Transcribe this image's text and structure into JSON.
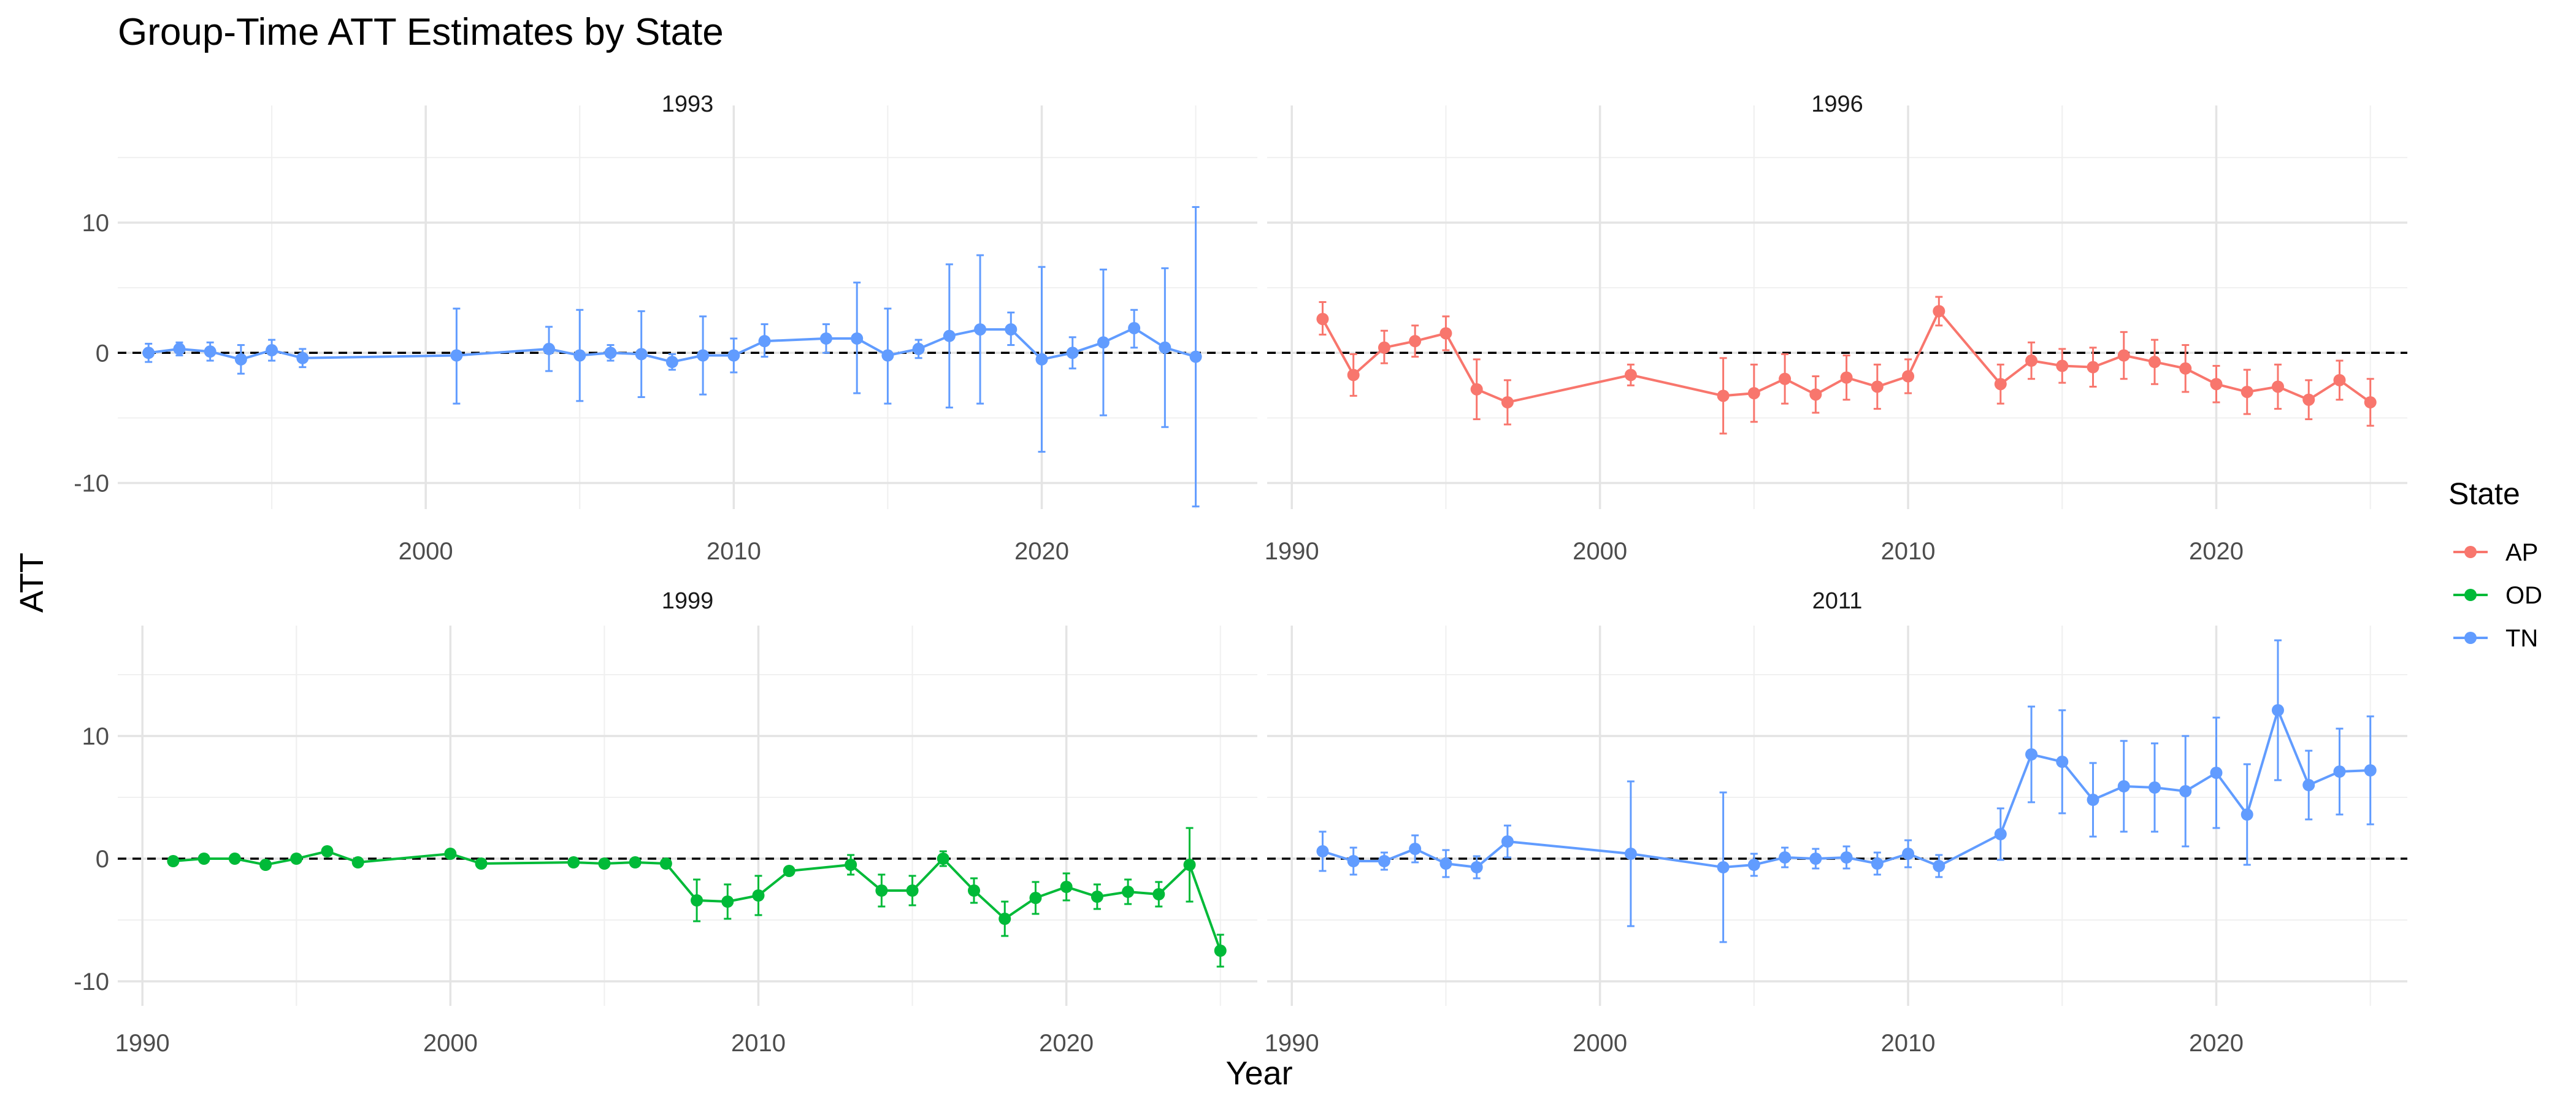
{
  "chart_data": {
    "type": "line",
    "title": "Group-Time ATT Estimates by State",
    "xlabel": "Year",
    "ylabel": "ATT",
    "ylim": [
      -12,
      19
    ],
    "y_ticks": [
      -10,
      0,
      10
    ],
    "grid": true,
    "reference_line": {
      "y": 0,
      "style": "dashed"
    },
    "legend": {
      "title": "State",
      "placement": "right",
      "entries": [
        {
          "name": "AP",
          "color": "#F8766D"
        },
        {
          "name": "OD",
          "color": "#00BA38"
        },
        {
          "name": "TN",
          "color": "#619CFF"
        }
      ]
    },
    "panels": [
      {
        "label": "1993",
        "state": "TN",
        "xlim": [
          1990,
          2027
        ],
        "x_ticks": [
          2000,
          2010,
          2020
        ],
        "points": [
          {
            "x": 1991,
            "y": 0.0,
            "lo": -0.7,
            "hi": 0.7
          },
          {
            "x": 1992,
            "y": 0.3,
            "lo": -0.2,
            "hi": 0.8
          },
          {
            "x": 1993,
            "y": 0.1,
            "lo": -0.6,
            "hi": 0.8
          },
          {
            "x": 1994,
            "y": -0.5,
            "lo": -1.6,
            "hi": 0.6
          },
          {
            "x": 1995,
            "y": 0.2,
            "lo": -0.6,
            "hi": 1.0
          },
          {
            "x": 1996,
            "y": -0.4,
            "lo": -1.1,
            "hi": 0.3
          },
          {
            "x": 2001,
            "y": -0.2,
            "lo": -3.9,
            "hi": 3.4
          },
          {
            "x": 2004,
            "y": 0.3,
            "lo": -1.4,
            "hi": 2.0
          },
          {
            "x": 2005,
            "y": -0.2,
            "lo": -3.7,
            "hi": 3.3
          },
          {
            "x": 2006,
            "y": 0.0,
            "lo": -0.6,
            "hi": 0.6
          },
          {
            "x": 2007,
            "y": -0.1,
            "lo": -3.4,
            "hi": 3.2
          },
          {
            "x": 2008,
            "y": -0.7,
            "lo": -1.3,
            "hi": -0.1
          },
          {
            "x": 2009,
            "y": -0.2,
            "lo": -3.2,
            "hi": 2.8
          },
          {
            "x": 2010,
            "y": -0.2,
            "lo": -1.5,
            "hi": 1.1
          },
          {
            "x": 2011,
            "y": 0.9,
            "lo": -0.3,
            "hi": 2.2
          },
          {
            "x": 2013,
            "y": 1.1,
            "lo": 0.0,
            "hi": 2.2
          },
          {
            "x": 2014,
            "y": 1.1,
            "lo": -3.1,
            "hi": 5.4
          },
          {
            "x": 2015,
            "y": -0.2,
            "lo": -3.9,
            "hi": 3.4
          },
          {
            "x": 2016,
            "y": 0.3,
            "lo": -0.4,
            "hi": 1.0
          },
          {
            "x": 2017,
            "y": 1.3,
            "lo": -4.2,
            "hi": 6.8
          },
          {
            "x": 2018,
            "y": 1.8,
            "lo": -3.9,
            "hi": 7.5
          },
          {
            "x": 2019,
            "y": 1.8,
            "lo": 0.6,
            "hi": 3.1
          },
          {
            "x": 2020,
            "y": -0.5,
            "lo": -7.6,
            "hi": 6.6
          },
          {
            "x": 2021,
            "y": 0.0,
            "lo": -1.2,
            "hi": 1.2
          },
          {
            "x": 2022,
            "y": 0.8,
            "lo": -4.8,
            "hi": 6.4
          },
          {
            "x": 2023,
            "y": 1.9,
            "lo": 0.4,
            "hi": 3.3
          },
          {
            "x": 2024,
            "y": 0.4,
            "lo": -5.7,
            "hi": 6.5
          },
          {
            "x": 2025,
            "y": -0.3,
            "lo": -11.8,
            "hi": 11.2
          }
        ]
      },
      {
        "label": "1996",
        "state": "AP",
        "xlim": [
          1989.2,
          2026.2
        ],
        "x_ticks": [
          1990,
          2000,
          2010,
          2020
        ],
        "points": [
          {
            "x": 1991,
            "y": 2.6,
            "lo": 1.4,
            "hi": 3.9
          },
          {
            "x": 1992,
            "y": -1.7,
            "lo": -3.3,
            "hi": -0.1
          },
          {
            "x": 1993,
            "y": 0.4,
            "lo": -0.8,
            "hi": 1.7
          },
          {
            "x": 1994,
            "y": 0.9,
            "lo": -0.3,
            "hi": 2.1
          },
          {
            "x": 1995,
            "y": 1.5,
            "lo": 0.2,
            "hi": 2.8
          },
          {
            "x": 1996,
            "y": -2.8,
            "lo": -5.1,
            "hi": -0.5
          },
          {
            "x": 1997,
            "y": -3.8,
            "lo": -5.5,
            "hi": -2.1
          },
          {
            "x": 2001,
            "y": -1.7,
            "lo": -2.5,
            "hi": -0.9
          },
          {
            "x": 2004,
            "y": -3.3,
            "lo": -6.2,
            "hi": -0.4
          },
          {
            "x": 2005,
            "y": -3.1,
            "lo": -5.3,
            "hi": -0.9
          },
          {
            "x": 2006,
            "y": -2.0,
            "lo": -3.9,
            "hi": -0.1
          },
          {
            "x": 2007,
            "y": -3.2,
            "lo": -4.6,
            "hi": -1.8
          },
          {
            "x": 2008,
            "y": -1.9,
            "lo": -3.6,
            "hi": -0.2
          },
          {
            "x": 2009,
            "y": -2.6,
            "lo": -4.3,
            "hi": -0.9
          },
          {
            "x": 2010,
            "y": -1.8,
            "lo": -3.1,
            "hi": -0.5
          },
          {
            "x": 2011,
            "y": 3.2,
            "lo": 2.1,
            "hi": 4.3
          },
          {
            "x": 2013,
            "y": -2.4,
            "lo": -3.9,
            "hi": -0.9
          },
          {
            "x": 2014,
            "y": -0.6,
            "lo": -2.0,
            "hi": 0.8
          },
          {
            "x": 2015,
            "y": -1.0,
            "lo": -2.3,
            "hi": 0.3
          },
          {
            "x": 2016,
            "y": -1.1,
            "lo": -2.6,
            "hi": 0.4
          },
          {
            "x": 2017,
            "y": -0.2,
            "lo": -2.0,
            "hi": 1.6
          },
          {
            "x": 2018,
            "y": -0.7,
            "lo": -2.4,
            "hi": 1.0
          },
          {
            "x": 2019,
            "y": -1.2,
            "lo": -3.0,
            "hi": 0.6
          },
          {
            "x": 2020,
            "y": -2.4,
            "lo": -3.8,
            "hi": -1.0
          },
          {
            "x": 2021,
            "y": -3.0,
            "lo": -4.7,
            "hi": -1.3
          },
          {
            "x": 2022,
            "y": -2.6,
            "lo": -4.3,
            "hi": -0.9
          },
          {
            "x": 2023,
            "y": -3.6,
            "lo": -5.1,
            "hi": -2.1
          },
          {
            "x": 2024,
            "y": -2.1,
            "lo": -3.6,
            "hi": -0.6
          },
          {
            "x": 2025,
            "y": -3.8,
            "lo": -5.6,
            "hi": -2.0
          }
        ]
      },
      {
        "label": "1999",
        "state": "OD",
        "xlim": [
          1989.2,
          2026.2
        ],
        "x_ticks": [
          1990,
          2000,
          2010,
          2020
        ],
        "points": [
          {
            "x": 1991,
            "y": -0.2,
            "lo": -0.5,
            "hi": 0.1
          },
          {
            "x": 1992,
            "y": 0.0,
            "lo": -0.3,
            "hi": 0.3
          },
          {
            "x": 1993,
            "y": 0.0,
            "lo": -0.3,
            "hi": 0.3
          },
          {
            "x": 1994,
            "y": -0.5,
            "lo": -0.8,
            "hi": -0.2
          },
          {
            "x": 1995,
            "y": 0.0,
            "lo": -0.3,
            "hi": 0.3
          },
          {
            "x": 1996,
            "y": 0.6,
            "lo": 0.3,
            "hi": 0.9
          },
          {
            "x": 1997,
            "y": -0.3,
            "lo": -0.6,
            "hi": 0.0
          },
          {
            "x": 2000,
            "y": 0.4,
            "lo": 0.1,
            "hi": 0.7
          },
          {
            "x": 2001,
            "y": -0.4,
            "lo": -0.7,
            "hi": -0.1
          },
          {
            "x": 2004,
            "y": -0.3,
            "lo": -0.6,
            "hi": 0.0
          },
          {
            "x": 2005,
            "y": -0.4,
            "lo": -0.7,
            "hi": -0.1
          },
          {
            "x": 2006,
            "y": -0.3,
            "lo": -0.6,
            "hi": 0.0
          },
          {
            "x": 2007,
            "y": -0.4,
            "lo": -0.7,
            "hi": -0.1
          },
          {
            "x": 2008,
            "y": -3.4,
            "lo": -5.1,
            "hi": -1.7
          },
          {
            "x": 2009,
            "y": -3.5,
            "lo": -4.9,
            "hi": -2.1
          },
          {
            "x": 2010,
            "y": -3.0,
            "lo": -4.6,
            "hi": -1.4
          },
          {
            "x": 2011,
            "y": -1.0,
            "lo": -1.3,
            "hi": -0.7
          },
          {
            "x": 2013,
            "y": -0.5,
            "lo": -1.3,
            "hi": 0.3
          },
          {
            "x": 2014,
            "y": -2.6,
            "lo": -3.9,
            "hi": -1.3
          },
          {
            "x": 2015,
            "y": -2.6,
            "lo": -3.8,
            "hi": -1.4
          },
          {
            "x": 2016,
            "y": 0.0,
            "lo": -0.6,
            "hi": 0.6
          },
          {
            "x": 2017,
            "y": -2.6,
            "lo": -3.6,
            "hi": -1.6
          },
          {
            "x": 2018,
            "y": -4.9,
            "lo": -6.3,
            "hi": -3.5
          },
          {
            "x": 2019,
            "y": -3.2,
            "lo": -4.5,
            "hi": -1.9
          },
          {
            "x": 2020,
            "y": -2.3,
            "lo": -3.4,
            "hi": -1.2
          },
          {
            "x": 2021,
            "y": -3.1,
            "lo": -4.1,
            "hi": -2.1
          },
          {
            "x": 2022,
            "y": -2.7,
            "lo": -3.7,
            "hi": -1.7
          },
          {
            "x": 2023,
            "y": -2.9,
            "lo": -3.9,
            "hi": -1.9
          },
          {
            "x": 2024,
            "y": -0.5,
            "lo": -3.5,
            "hi": 2.5
          },
          {
            "x": 2025,
            "y": -7.5,
            "lo": -8.8,
            "hi": -6.2
          }
        ]
      },
      {
        "label": "2011",
        "state": "TN",
        "xlim": [
          1989.2,
          2026.2
        ],
        "x_ticks": [
          1990,
          2000,
          2010,
          2020
        ],
        "points": [
          {
            "x": 1991,
            "y": 0.6,
            "lo": -1.0,
            "hi": 2.2
          },
          {
            "x": 1992,
            "y": -0.2,
            "lo": -1.3,
            "hi": 0.9
          },
          {
            "x": 1993,
            "y": -0.2,
            "lo": -0.9,
            "hi": 0.5
          },
          {
            "x": 1994,
            "y": 0.8,
            "lo": -0.3,
            "hi": 1.9
          },
          {
            "x": 1995,
            "y": -0.4,
            "lo": -1.5,
            "hi": 0.7
          },
          {
            "x": 1996,
            "y": -0.7,
            "lo": -1.6,
            "hi": 0.2
          },
          {
            "x": 1997,
            "y": 1.4,
            "lo": 0.1,
            "hi": 2.7
          },
          {
            "x": 2001,
            "y": 0.4,
            "lo": -5.5,
            "hi": 6.3
          },
          {
            "x": 2004,
            "y": -0.7,
            "lo": -6.8,
            "hi": 5.4
          },
          {
            "x": 2005,
            "y": -0.5,
            "lo": -1.4,
            "hi": 0.4
          },
          {
            "x": 2006,
            "y": 0.1,
            "lo": -0.7,
            "hi": 0.9
          },
          {
            "x": 2007,
            "y": 0.0,
            "lo": -0.8,
            "hi": 0.8
          },
          {
            "x": 2008,
            "y": 0.1,
            "lo": -0.8,
            "hi": 1.0
          },
          {
            "x": 2009,
            "y": -0.4,
            "lo": -1.3,
            "hi": 0.5
          },
          {
            "x": 2010,
            "y": 0.4,
            "lo": -0.7,
            "hi": 1.5
          },
          {
            "x": 2011,
            "y": -0.6,
            "lo": -1.5,
            "hi": 0.3
          },
          {
            "x": 2013,
            "y": 2.0,
            "lo": -0.1,
            "hi": 4.1
          },
          {
            "x": 2014,
            "y": 8.5,
            "lo": 4.6,
            "hi": 12.4
          },
          {
            "x": 2015,
            "y": 7.9,
            "lo": 3.7,
            "hi": 12.1
          },
          {
            "x": 2016,
            "y": 4.8,
            "lo": 1.8,
            "hi": 7.8
          },
          {
            "x": 2017,
            "y": 5.9,
            "lo": 2.2,
            "hi": 9.6
          },
          {
            "x": 2018,
            "y": 5.8,
            "lo": 2.2,
            "hi": 9.4
          },
          {
            "x": 2019,
            "y": 5.5,
            "lo": 1.0,
            "hi": 10.0
          },
          {
            "x": 2020,
            "y": 7.0,
            "lo": 2.5,
            "hi": 11.5
          },
          {
            "x": 2021,
            "y": 3.6,
            "lo": -0.5,
            "hi": 7.7
          },
          {
            "x": 2022,
            "y": 12.1,
            "lo": 6.4,
            "hi": 17.8
          },
          {
            "x": 2023,
            "y": 6.0,
            "lo": 3.2,
            "hi": 8.8
          },
          {
            "x": 2024,
            "y": 7.1,
            "lo": 3.6,
            "hi": 10.6
          },
          {
            "x": 2025,
            "y": 7.2,
            "lo": 2.8,
            "hi": 11.6
          }
        ]
      }
    ]
  }
}
